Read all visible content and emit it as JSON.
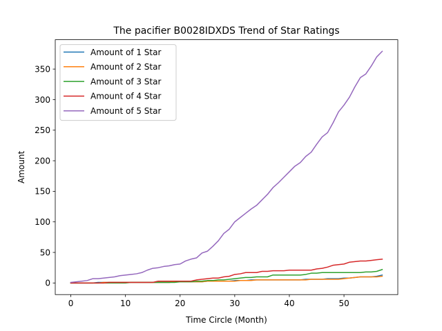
{
  "chart_data": {
    "type": "line",
    "title": "The pacifier B0028IDXDS Trend of Star Ratings",
    "xlabel": "Time Circle (Month)",
    "ylabel": "Amount",
    "xlim": [
      -2.85,
      59.85
    ],
    "ylim": [
      -19,
      398
    ],
    "xticks": [
      0,
      10,
      20,
      30,
      40,
      50
    ],
    "yticks": [
      0,
      50,
      100,
      150,
      200,
      250,
      300,
      350
    ],
    "grid": false,
    "legend_position": "top-left",
    "x": [
      0,
      1,
      2,
      3,
      4,
      5,
      6,
      7,
      8,
      9,
      10,
      11,
      12,
      13,
      14,
      15,
      16,
      17,
      18,
      19,
      20,
      21,
      22,
      23,
      24,
      25,
      26,
      27,
      28,
      29,
      30,
      31,
      32,
      33,
      34,
      35,
      36,
      37,
      38,
      39,
      40,
      41,
      42,
      43,
      44,
      45,
      46,
      47,
      48,
      49,
      50,
      51,
      52,
      53,
      54,
      55,
      56,
      57
    ],
    "series": [
      {
        "name": "Amount of 1 Star",
        "color": "#1f77b4",
        "values": [
          0,
          0,
          0,
          0,
          0,
          1,
          1,
          1,
          1,
          1,
          1,
          1,
          1,
          1,
          1,
          1,
          1,
          1,
          1,
          2,
          2,
          2,
          2,
          2,
          2,
          3,
          3,
          3,
          3,
          3,
          4,
          4,
          4,
          5,
          5,
          5,
          5,
          5,
          5,
          5,
          5,
          5,
          5,
          6,
          6,
          6,
          6,
          7,
          7,
          7,
          8,
          8,
          9,
          10,
          10,
          10,
          11,
          13
        ]
      },
      {
        "name": "Amount of 2 Star",
        "color": "#ff7f0e",
        "values": [
          0,
          0,
          0,
          0,
          0,
          0,
          1,
          1,
          1,
          1,
          1,
          1,
          1,
          1,
          1,
          1,
          1,
          1,
          1,
          2,
          2,
          2,
          2,
          2,
          2,
          3,
          3,
          3,
          3,
          3,
          3,
          4,
          4,
          4,
          5,
          5,
          5,
          5,
          5,
          5,
          5,
          5,
          5,
          5,
          6,
          6,
          6,
          6,
          6,
          6,
          7,
          8,
          9,
          10,
          10,
          10,
          10,
          11
        ]
      },
      {
        "name": "Amount of 3 Star",
        "color": "#2ca02c",
        "values": [
          0,
          0,
          0,
          0,
          0,
          0,
          0,
          0,
          0,
          0,
          0,
          1,
          1,
          1,
          1,
          1,
          1,
          1,
          1,
          1,
          2,
          2,
          2,
          3,
          3,
          4,
          4,
          5,
          5,
          6,
          7,
          8,
          9,
          9,
          10,
          10,
          10,
          13,
          13,
          13,
          13,
          13,
          13,
          14,
          16,
          16,
          17,
          17,
          17,
          17,
          17,
          17,
          17,
          17,
          18,
          18,
          19,
          22
        ]
      },
      {
        "name": "Amount of 4 Star",
        "color": "#d62728",
        "values": [
          0,
          0,
          0,
          0,
          0,
          0,
          0,
          1,
          1,
          1,
          1,
          1,
          1,
          1,
          1,
          1,
          3,
          3,
          3,
          3,
          3,
          3,
          3,
          5,
          6,
          7,
          8,
          8,
          10,
          11,
          14,
          15,
          17,
          17,
          17,
          19,
          19,
          20,
          20,
          20,
          21,
          21,
          21,
          21,
          21,
          23,
          24,
          26,
          29,
          30,
          31,
          34,
          35,
          36,
          36,
          37,
          38,
          39
        ]
      },
      {
        "name": "Amount of 5 Star",
        "color": "#9467bd",
        "values": [
          1,
          2,
          3,
          4,
          7,
          7,
          8,
          9,
          10,
          12,
          13,
          14,
          15,
          17,
          21,
          24,
          25,
          27,
          28,
          30,
          31,
          36,
          39,
          41,
          49,
          52,
          60,
          69,
          81,
          88,
          100,
          107,
          114,
          121,
          127,
          136,
          145,
          156,
          164,
          173,
          182,
          191,
          197,
          207,
          214,
          227,
          239,
          246,
          262,
          280,
          291,
          304,
          321,
          336,
          342,
          355,
          370,
          379
        ]
      }
    ]
  }
}
